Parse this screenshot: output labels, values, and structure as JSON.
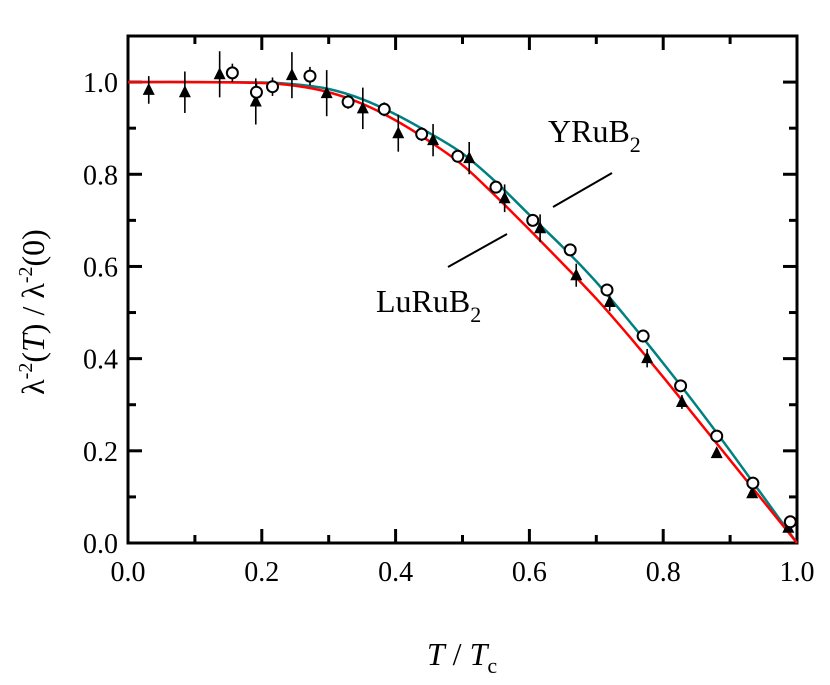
{
  "chart_data": {
    "type": "scatter",
    "xlabel": "T / T_c",
    "xlabel_parts": {
      "italic1": "T",
      "sep": " / ",
      "italic2": "T",
      "sub": "c"
    },
    "ylabel": "λ^-2(T) / λ^-2(0)",
    "ylabel_parts": {
      "a": "λ",
      "sup1": "-2",
      "b": "(",
      "italic": "T",
      "c": ") / λ",
      "sup2": "-2",
      "d": "(0)"
    },
    "xlim": [
      0,
      1.0
    ],
    "ylim": [
      0,
      1.1
    ],
    "xticks": [
      "0.0",
      "0.2",
      "0.4",
      "0.6",
      "0.8",
      "1.0"
    ],
    "yticks": [
      "0.0",
      "0.2",
      "0.4",
      "0.6",
      "0.8",
      "1.0"
    ],
    "grid": false,
    "annotations": [
      {
        "text": "YRuB",
        "sub": "2",
        "series": "YRuB2"
      },
      {
        "text": "LuRuB",
        "sub": "2",
        "series": "LuRuB2"
      }
    ],
    "series": [
      {
        "name": "YRuB2",
        "marker": "open-circle",
        "points": [
          [
            0.156,
            1.02
          ],
          [
            0.192,
            0.978
          ],
          [
            0.216,
            0.99
          ],
          [
            0.272,
            1.013
          ],
          [
            0.329,
            0.957
          ],
          [
            0.383,
            0.941
          ],
          [
            0.439,
            0.887
          ],
          [
            0.493,
            0.839
          ],
          [
            0.55,
            0.772
          ],
          [
            0.605,
            0.7
          ],
          [
            0.661,
            0.636
          ],
          [
            0.716,
            0.549
          ],
          [
            0.77,
            0.449
          ],
          [
            0.826,
            0.341
          ],
          [
            0.88,
            0.232
          ],
          [
            0.934,
            0.13
          ],
          [
            0.99,
            0.046
          ]
        ],
        "yerr": [
          0.02,
          0.02,
          0.02,
          0.02,
          0.015,
          0.015,
          0.015,
          0.012,
          0.01,
          0.01,
          0.01,
          0.01,
          0.01,
          0.01,
          0.01,
          0.01,
          0.01
        ]
      },
      {
        "name": "LuRuB2",
        "marker": "filled-triangle",
        "points": [
          [
            0.031,
            0.983
          ],
          [
            0.085,
            0.978
          ],
          [
            0.137,
            1.017
          ],
          [
            0.191,
            0.958
          ],
          [
            0.245,
            1.015
          ],
          [
            0.297,
            0.976
          ],
          [
            0.351,
            0.943
          ],
          [
            0.404,
            0.889
          ],
          [
            0.456,
            0.874
          ],
          [
            0.51,
            0.835
          ],
          [
            0.563,
            0.748
          ],
          [
            0.616,
            0.683
          ],
          [
            0.67,
            0.581
          ],
          [
            0.72,
            0.523
          ],
          [
            0.776,
            0.401
          ],
          [
            0.828,
            0.306
          ],
          [
            0.88,
            0.195
          ],
          [
            0.933,
            0.108
          ],
          [
            0.987,
            0.033
          ]
        ],
        "yerr": [
          0.03,
          0.045,
          0.05,
          0.05,
          0.05,
          0.05,
          0.045,
          0.04,
          0.035,
          0.035,
          0.03,
          0.03,
          0.025,
          0.02,
          0.02,
          0.015,
          0.01,
          0.01,
          0.01
        ]
      }
    ],
    "fits": [
      {
        "series": "YRuB2",
        "color": "#008080",
        "points": [
          [
            0,
            1
          ],
          [
            0.1,
            1.0
          ],
          [
            0.2,
            0.999
          ],
          [
            0.25,
            0.995
          ],
          [
            0.3,
            0.985
          ],
          [
            0.35,
            0.963
          ],
          [
            0.4,
            0.93
          ],
          [
            0.45,
            0.89
          ],
          [
            0.5,
            0.845
          ],
          [
            0.55,
            0.783
          ],
          [
            0.6,
            0.712
          ],
          [
            0.65,
            0.642
          ],
          [
            0.7,
            0.566
          ],
          [
            0.75,
            0.48
          ],
          [
            0.8,
            0.39
          ],
          [
            0.85,
            0.297
          ],
          [
            0.9,
            0.2
          ],
          [
            0.95,
            0.1
          ],
          [
            1.0,
            0
          ]
        ]
      },
      {
        "series": "LuRuB2",
        "color": "#ff0000",
        "points": [
          [
            0,
            1
          ],
          [
            0.1,
            1.0
          ],
          [
            0.2,
            0.998
          ],
          [
            0.25,
            0.992
          ],
          [
            0.3,
            0.978
          ],
          [
            0.35,
            0.953
          ],
          [
            0.4,
            0.917
          ],
          [
            0.45,
            0.872
          ],
          [
            0.5,
            0.82
          ],
          [
            0.55,
            0.752
          ],
          [
            0.6,
            0.68
          ],
          [
            0.65,
            0.606
          ],
          [
            0.7,
            0.53
          ],
          [
            0.75,
            0.447
          ],
          [
            0.8,
            0.36
          ],
          [
            0.85,
            0.27
          ],
          [
            0.9,
            0.18
          ],
          [
            0.95,
            0.09
          ],
          [
            1.0,
            0
          ]
        ]
      }
    ]
  }
}
